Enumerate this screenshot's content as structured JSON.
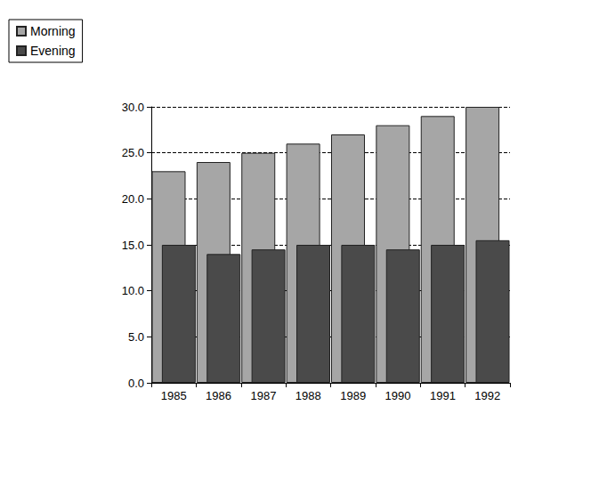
{
  "chart_data": {
    "type": "bar",
    "categories": [
      "1985",
      "1986",
      "1987",
      "1988",
      "1989",
      "1990",
      "1991",
      "1992"
    ],
    "series": [
      {
        "name": "Morning",
        "color": "#a6a6a6",
        "values": [
          23,
          24,
          25,
          26,
          27,
          28,
          29,
          30
        ]
      },
      {
        "name": "Evening",
        "color": "#4a4a4a",
        "values": [
          15,
          14,
          14.5,
          15,
          15,
          14.5,
          15,
          15.5
        ]
      }
    ],
    "ylim": [
      0,
      30
    ],
    "yticks": [
      {
        "value": 0,
        "label": "0.0"
      },
      {
        "value": 5,
        "label": "5.0"
      },
      {
        "value": 10,
        "label": "10.0"
      },
      {
        "value": 15,
        "label": "15.0"
      },
      {
        "value": 20,
        "label": "20.0"
      },
      {
        "value": 25,
        "label": "25.0"
      },
      {
        "value": 30,
        "label": "30.0"
      }
    ],
    "grid": true,
    "legend": "top-left"
  }
}
